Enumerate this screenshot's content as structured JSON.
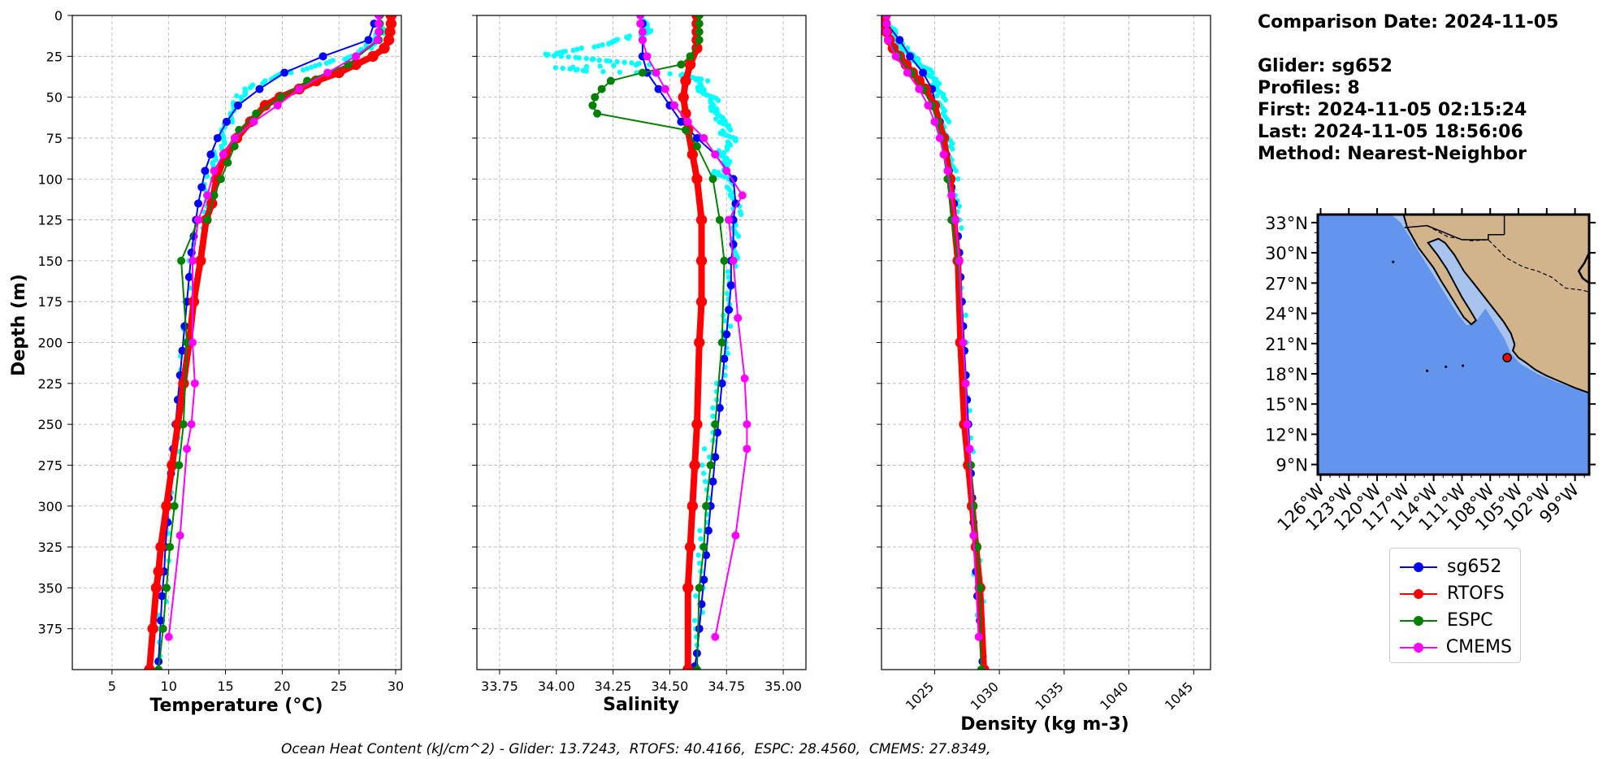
{
  "info": {
    "comparison_date": "Comparison Date: 2024-11-05",
    "glider": "Glider: sg652",
    "profiles": "Profiles: 8",
    "first": "First: 2024-11-05 02:15:24",
    "last": "Last: 2024-11-05 18:56:06",
    "method": "Method: Nearest-Neighbor"
  },
  "ohc_text": "Ocean Heat Content (kJ/cm^2) - Glider: 13.7243,  RTOFS: 40.4166,  ESPC: 28.4560,  CMEMS: 27.8349,",
  "colors": {
    "sg652": "#0000ff",
    "RTOFS": "#ff0000",
    "ESPC": "#008000",
    "CMEMS": "#ff00ff",
    "glider_points": "#00ffff",
    "ocean": "#6495ed",
    "shallow": "#a8c4ee",
    "land": "#d2b48c"
  },
  "legend": [
    {
      "name": "sg652",
      "color": "#0000ff"
    },
    {
      "name": "RTOFS",
      "color": "#ff0000"
    },
    {
      "name": "ESPC",
      "color": "#008000"
    },
    {
      "name": "CMEMS",
      "color": "#ff00ff"
    }
  ],
  "chart_data": [
    {
      "type": "line",
      "xlabel": "Temperature (°C)",
      "ylabel": "Depth (m)",
      "xlim": [
        1.5,
        30.5
      ],
      "ylim": [
        400,
        0
      ],
      "x_ticks": [
        5,
        10,
        15,
        20,
        25,
        30
      ],
      "y_ticks": [
        0,
        25,
        50,
        75,
        100,
        125,
        150,
        175,
        200,
        225,
        250,
        275,
        300,
        325,
        350,
        375
      ],
      "grid": true,
      "scatter": {
        "name": "glider",
        "depth": [
          5,
          10,
          15,
          20,
          25,
          30,
          35,
          40,
          45,
          50,
          60,
          70,
          80,
          90,
          100,
          120,
          150,
          200,
          250,
          300,
          350,
          400
        ],
        "values": [
          28.5,
          28.8,
          28.2,
          27.5,
          26.0,
          23.5,
          20.5,
          18.5,
          17.0,
          16.2,
          15.5,
          15.0,
          14.5,
          14.0,
          13.5,
          13.0,
          12.0,
          11.5,
          10.8,
          10.2,
          9.5,
          9.0
        ]
      },
      "series": [
        {
          "name": "sg652",
          "lineWidth": 2,
          "markerSize": 6,
          "values": [
            28.1,
            27.6,
            23.6,
            20.2,
            18.0,
            16.1,
            15.1,
            14.3,
            13.7,
            13.2,
            12.9,
            12.6,
            12.4,
            12.2,
            12.0,
            11.8,
            11.6,
            11.4,
            11.2,
            11.0,
            10.8,
            10.6,
            10.4,
            10.2,
            10.0,
            9.9,
            9.7,
            9.6,
            9.4,
            9.3,
            9.1
          ],
          "depth": [
            5,
            15,
            25,
            35,
            45,
            55,
            65,
            75,
            85,
            95,
            105,
            115,
            125,
            135,
            145,
            160,
            175,
            190,
            205,
            220,
            235,
            250,
            265,
            280,
            295,
            310,
            325,
            340,
            355,
            370,
            395
          ]
        },
        {
          "name": "RTOFS",
          "lineWidth": 8,
          "markerSize": 8,
          "values": [
            29.6,
            29.6,
            29.5,
            29.4,
            29.0,
            28.0,
            26.5,
            25.0,
            23.0,
            21.5,
            19.8,
            18.5,
            17.2,
            16.0,
            15.0,
            14.2,
            13.8,
            13.3,
            12.8,
            12.2,
            11.8,
            11.3,
            10.8,
            10.3,
            9.8,
            9.3,
            9.1,
            8.9,
            8.6,
            8.3
          ],
          "depth": [
            0,
            5,
            10,
            15,
            20,
            25,
            30,
            35,
            40,
            45,
            50,
            55,
            65,
            75,
            85,
            100,
            115,
            125,
            150,
            175,
            200,
            225,
            250,
            275,
            300,
            325,
            340,
            350,
            375,
            400
          ]
        },
        {
          "name": "ESPC",
          "lineWidth": 2,
          "markerSize": 6,
          "values": [
            28.6,
            28.6,
            28.6,
            28.5,
            25.8,
            22.2,
            19.9,
            17.7,
            16.2,
            15.8,
            15.2,
            14.6,
            14.0,
            13.4,
            12.6,
            11.1,
            11.6,
            11.3,
            10.9,
            10.5,
            10.1,
            9.8,
            9.5,
            9.1
          ],
          "depth": [
            0,
            5,
            10,
            15,
            30,
            40,
            50,
            60,
            70,
            80,
            90,
            100,
            110,
            125,
            125,
            150,
            200,
            250,
            275,
            300,
            325,
            350,
            375,
            400
          ]
        },
        {
          "name": "CMEMS",
          "lineWidth": 2,
          "markerSize": 6,
          "values": [
            28.5,
            28.5,
            28.5,
            28.4,
            26.5,
            24.0,
            21.5,
            19.6,
            17.5,
            15.8,
            14.8,
            14.0,
            13.4,
            12.6,
            12.1,
            12.1,
            12.3,
            12.0,
            11.6,
            11.0,
            10.0
          ],
          "depth": [
            0,
            5,
            10,
            15,
            25,
            35,
            45,
            55,
            65,
            75,
            85,
            95,
            110,
            125,
            150,
            200,
            225,
            250,
            265,
            318,
            380
          ]
        }
      ]
    },
    {
      "type": "line",
      "xlabel": "Salinity",
      "ylim": [
        400,
        0
      ],
      "xlim": [
        33.65,
        35.1
      ],
      "x_ticks": [
        33.75,
        34.0,
        34.25,
        34.5,
        34.75,
        35.0
      ],
      "x_tick_labels": [
        "33.75",
        "34.00",
        "34.25",
        "34.50",
        "34.75",
        "35.00"
      ],
      "grid": true,
      "scatter": {
        "name": "glider",
        "depth": [
          3,
          6,
          10,
          14,
          18,
          22,
          24,
          26,
          28,
          30,
          32,
          34,
          36,
          38,
          40,
          44,
          48,
          52,
          56,
          60,
          64,
          68,
          72,
          76,
          80,
          84,
          88,
          92,
          96,
          100,
          110,
          120,
          130,
          140,
          150,
          170,
          190,
          210,
          240,
          270,
          300,
          330,
          360,
          390
        ],
        "values": [
          34.4,
          34.38,
          34.42,
          34.3,
          34.2,
          34.05,
          33.95,
          34.1,
          34.25,
          34.4,
          34.0,
          34.15,
          34.55,
          34.6,
          34.65,
          34.62,
          34.66,
          34.7,
          34.68,
          34.72,
          34.72,
          34.76,
          34.74,
          34.78,
          34.76,
          34.72,
          34.74,
          34.76,
          34.7,
          34.76,
          34.78,
          34.8,
          34.78,
          34.79,
          34.78,
          34.76,
          34.75,
          34.74,
          34.7,
          34.66,
          34.66,
          34.64,
          34.63,
          34.61
        ]
      },
      "series": [
        {
          "name": "sg652",
          "lineWidth": 2,
          "markerSize": 6,
          "values": [
            34.38,
            34.38,
            34.38,
            34.4,
            34.45,
            34.5,
            34.55,
            34.62,
            34.7,
            34.78,
            34.79,
            34.78,
            34.78,
            34.77,
            34.77,
            34.76,
            34.75,
            34.74,
            34.73,
            34.72,
            34.71,
            34.7,
            34.69,
            34.68,
            34.67,
            34.66,
            34.65,
            34.64,
            34.63,
            34.62,
            34.61
          ],
          "depth": [
            5,
            15,
            25,
            35,
            45,
            55,
            65,
            75,
            85,
            100,
            115,
            125,
            140,
            150,
            165,
            180,
            195,
            210,
            225,
            240,
            255,
            270,
            285,
            300,
            315,
            330,
            345,
            360,
            375,
            390,
            398
          ]
        },
        {
          "name": "RTOFS",
          "lineWidth": 8,
          "markerSize": 8,
          "values": [
            34.62,
            34.62,
            34.62,
            34.62,
            34.62,
            34.59,
            34.57,
            34.56,
            34.57,
            34.58,
            34.6,
            34.62,
            34.64,
            34.64,
            34.64,
            34.63,
            34.62,
            34.61,
            34.6,
            34.59,
            34.58,
            34.58
          ],
          "depth": [
            0,
            5,
            10,
            15,
            20,
            30,
            40,
            50,
            60,
            70,
            85,
            100,
            125,
            150,
            175,
            200,
            250,
            275,
            300,
            325,
            350,
            400
          ]
        },
        {
          "name": "ESPC",
          "lineWidth": 2,
          "markerSize": 6,
          "values": [
            34.63,
            34.63,
            34.63,
            34.63,
            34.59,
            34.55,
            34.38,
            34.24,
            34.2,
            34.17,
            34.16,
            34.18,
            34.57,
            34.62,
            34.69,
            34.72,
            34.74,
            34.73,
            34.7,
            34.68,
            34.66,
            34.65,
            34.63,
            34.62
          ],
          "depth": [
            0,
            5,
            10,
            15,
            25,
            30,
            35,
            40,
            45,
            50,
            55,
            60,
            70,
            80,
            100,
            125,
            150,
            200,
            250,
            275,
            300,
            325,
            350,
            400
          ]
        },
        {
          "name": "CMEMS",
          "lineWidth": 2,
          "markerSize": 6,
          "values": [
            34.37,
            34.37,
            34.38,
            34.38,
            34.4,
            34.44,
            34.48,
            34.52,
            34.58,
            34.65,
            34.7,
            34.75,
            34.82,
            34.76,
            34.78,
            34.8,
            34.83,
            34.84,
            34.84,
            34.79,
            34.7
          ],
          "depth": [
            0,
            5,
            10,
            15,
            25,
            35,
            45,
            55,
            65,
            75,
            85,
            95,
            110,
            125,
            150,
            185,
            222,
            250,
            265,
            318,
            380
          ]
        }
      ]
    },
    {
      "type": "line",
      "xlabel": "Density (kg m-3)",
      "ylim": [
        400,
        0
      ],
      "xlim": [
        1020.9,
        1046.3
      ],
      "x_ticks": [
        1025,
        1030,
        1035,
        1040,
        1045
      ],
      "x_tick_labels": [
        "1025",
        "1030",
        "1035",
        "1040",
        "1045"
      ],
      "grid": true,
      "scatter": {
        "name": "glider",
        "depth": [
          5,
          10,
          15,
          20,
          25,
          30,
          35,
          40,
          45,
          50,
          60,
          70,
          80,
          90,
          100,
          120,
          150,
          200,
          250,
          300,
          350,
          400
        ],
        "values": [
          1021.5,
          1021.7,
          1022.0,
          1022.6,
          1023.2,
          1023.9,
          1024.6,
          1025.0,
          1025.3,
          1025.5,
          1025.7,
          1025.9,
          1026.1,
          1026.3,
          1026.5,
          1026.7,
          1026.9,
          1027.2,
          1027.6,
          1028.0,
          1028.4,
          1028.8
        ]
      },
      "series": [
        {
          "name": "sg652",
          "lineWidth": 2,
          "markerSize": 6,
          "values": [
            1021.3,
            1022.3,
            1023.1,
            1024.1,
            1024.8,
            1025.1,
            1025.4,
            1025.6,
            1025.9,
            1026.1,
            1026.3,
            1026.5,
            1026.6,
            1026.8,
            1026.9,
            1027.0,
            1027.1,
            1027.2,
            1027.3,
            1027.4,
            1027.5,
            1027.6,
            1027.7,
            1027.8,
            1027.9,
            1028.0,
            1028.1,
            1028.2,
            1028.3,
            1028.5,
            1028.7
          ],
          "depth": [
            5,
            15,
            25,
            35,
            45,
            55,
            65,
            75,
            85,
            95,
            105,
            115,
            125,
            135,
            145,
            160,
            175,
            190,
            205,
            220,
            235,
            250,
            265,
            280,
            295,
            310,
            325,
            340,
            355,
            370,
            395
          ]
        },
        {
          "name": "RTOFS",
          "lineWidth": 8,
          "markerSize": 8,
          "values": [
            1021.2,
            1021.2,
            1021.3,
            1021.5,
            1021.8,
            1022.3,
            1022.8,
            1023.3,
            1023.8,
            1024.3,
            1025.0,
            1025.7,
            1026.2,
            1026.5,
            1026.8,
            1027.0,
            1027.3,
            1027.6,
            1027.9,
            1028.2,
            1028.5,
            1028.8
          ],
          "depth": [
            0,
            5,
            10,
            15,
            20,
            25,
            30,
            35,
            40,
            45,
            55,
            75,
            100,
            125,
            150,
            200,
            250,
            275,
            300,
            325,
            350,
            400
          ]
        },
        {
          "name": "ESPC",
          "lineWidth": 2,
          "markerSize": 6,
          "values": [
            1021.3,
            1021.3,
            1021.3,
            1021.4,
            1022.2,
            1023.2,
            1024.1,
            1024.8,
            1025.2,
            1025.5,
            1025.7,
            1026.0,
            1026.3,
            1026.8,
            1027.2,
            1027.5,
            1027.8,
            1028.0,
            1028.3,
            1028.5,
            1028.6
          ],
          "depth": [
            0,
            5,
            10,
            15,
            25,
            35,
            45,
            55,
            65,
            75,
            85,
            100,
            125,
            150,
            200,
            250,
            275,
            300,
            325,
            350,
            400
          ]
        },
        {
          "name": "CMEMS",
          "lineWidth": 2,
          "markerSize": 6,
          "values": [
            1021.3,
            1021.3,
            1021.3,
            1021.4,
            1022.0,
            1022.9,
            1023.8,
            1024.5,
            1025.0,
            1025.4,
            1025.7,
            1026.0,
            1026.3,
            1026.6,
            1026.9,
            1027.2,
            1027.4,
            1027.5,
            1027.7,
            1028.0,
            1028.4
          ],
          "depth": [
            0,
            5,
            10,
            15,
            25,
            35,
            45,
            55,
            65,
            75,
            85,
            95,
            110,
            125,
            150,
            200,
            225,
            250,
            265,
            318,
            380
          ]
        }
      ]
    }
  ],
  "map": {
    "lat_labels": [
      "33°N",
      "30°N",
      "27°N",
      "24°N",
      "21°N",
      "18°N",
      "15°N",
      "12°N",
      "9°N"
    ],
    "lat_values": [
      33,
      30,
      27,
      24,
      21,
      18,
      15,
      12,
      9
    ],
    "lon_labels": [
      "126°W",
      "123°W",
      "120°W",
      "117°W",
      "114°W",
      "111°W",
      "108°W",
      "105°W",
      "102°W",
      "99°W"
    ],
    "lon_values": [
      -126,
      -123,
      -120,
      -117,
      -114,
      -111,
      -108,
      -105,
      -102,
      -99
    ],
    "lat_range": [
      8,
      33.8
    ],
    "lon_range": [
      -126.3,
      -97.5
    ],
    "glider_location": {
      "lon": -106.2,
      "lat": 19.6
    }
  }
}
